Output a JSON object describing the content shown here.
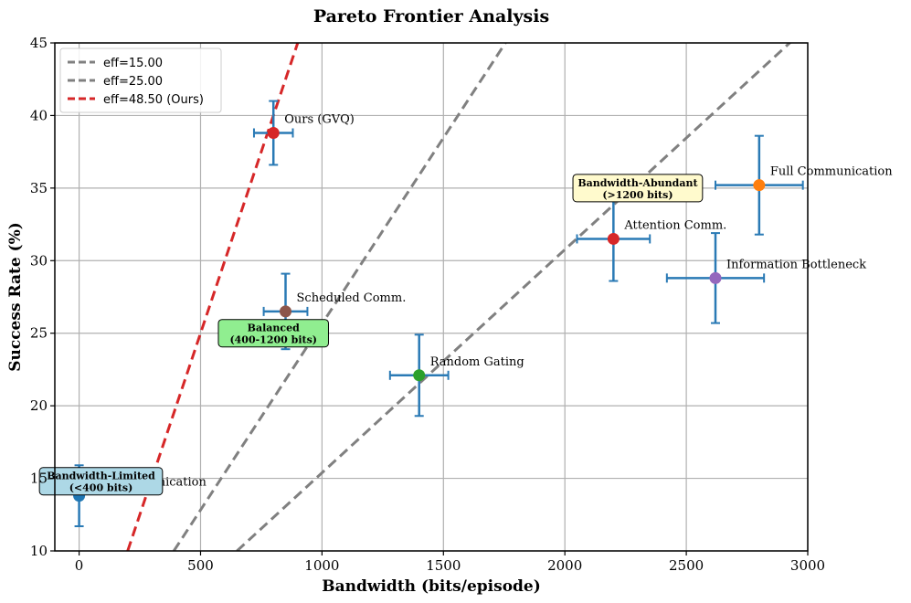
{
  "chart_data": {
    "type": "scatter",
    "title": "Pareto Frontier Analysis",
    "xlabel": "Bandwidth (bits/episode)",
    "ylabel": "Success Rate (%)",
    "xlim": [
      -100,
      3000
    ],
    "ylim": [
      10,
      45
    ],
    "xticks": [
      0,
      500,
      1000,
      1500,
      2000,
      2500,
      3000
    ],
    "yticks": [
      10,
      15,
      20,
      25,
      30,
      35,
      40,
      45
    ],
    "grid": true,
    "legend_position": "top-left",
    "points": [
      {
        "label": "No Communication",
        "x": 0,
        "y": 13.8,
        "xerr": 0,
        "yerr": 2.1,
        "color": "#1f77b4"
      },
      {
        "label": "Ours (GVQ)",
        "x": 800,
        "y": 38.8,
        "xerr": 80,
        "yerr": 2.2,
        "color": "#d62728"
      },
      {
        "label": "Scheduled Comm.",
        "x": 850,
        "y": 26.5,
        "xerr": 90,
        "yerr": 2.6,
        "color": "#8c564b"
      },
      {
        "label": "Random Gating",
        "x": 1400,
        "y": 22.1,
        "xerr": 120,
        "yerr": 2.8,
        "color": "#2ca02c"
      },
      {
        "label": "Attention Comm.",
        "x": 2200,
        "y": 31.5,
        "xerr": 150,
        "yerr": 2.9,
        "color": "#d62728"
      },
      {
        "label": "Information Bottleneck",
        "x": 2620,
        "y": 28.8,
        "xerr": 200,
        "yerr": 3.1,
        "color": "#9467bd"
      },
      {
        "label": "Full Communication",
        "x": 2800,
        "y": 35.2,
        "xerr": 180,
        "yerr": 3.4,
        "color": "#ff7f0e"
      }
    ],
    "errorbar_color": "#2a7ab5",
    "lines": [
      {
        "name": "eff=15.00",
        "slope": 0.01538,
        "x0": 650,
        "color": "#808080"
      },
      {
        "name": "eff=25.00",
        "slope": 0.02564,
        "x0": 390,
        "color": "#808080"
      },
      {
        "name": "eff=48.50 (Ours)",
        "slope": 0.05,
        "x0": 200,
        "color": "#d62728"
      }
    ],
    "regions": [
      {
        "line1": "Bandwidth-Limited",
        "line2": "(<400 bits)",
        "x": 90,
        "y": 14.8,
        "bg": "#add8e6"
      },
      {
        "line1": "Balanced",
        "line2": "(400-1200 bits)",
        "x": 800,
        "y": 25,
        "bg": "#90ee90"
      },
      {
        "line1": "Bandwidth-Abundant",
        "line2": "(>1200 bits)",
        "x": 2300,
        "y": 35,
        "bg": "#fffacd"
      }
    ]
  }
}
